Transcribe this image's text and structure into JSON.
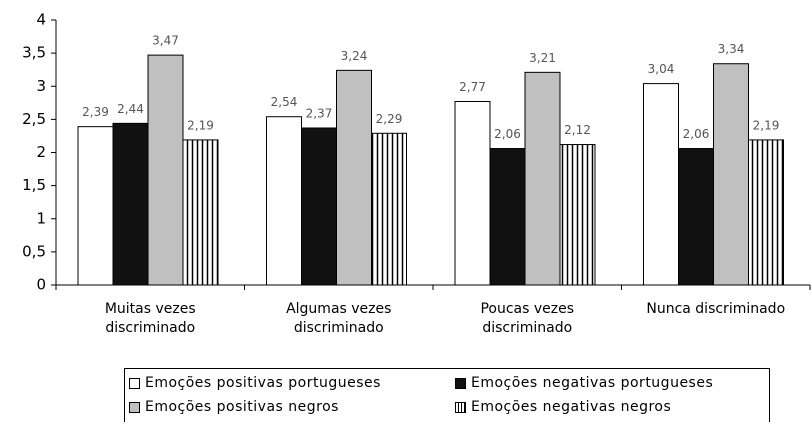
{
  "chart_data": {
    "type": "bar",
    "categories": [
      "Muitas vezes discriminado",
      "Algumas vezes discriminado",
      "Poucas vezes discriminado",
      "Nunca discriminado"
    ],
    "series": [
      {
        "name": "Emoções positivas portugueses",
        "color": "#ffffff",
        "values": [
          2.39,
          2.54,
          2.77,
          3.04
        ],
        "value_labels": [
          "2,39",
          "2,54",
          "2,77",
          "3,04"
        ]
      },
      {
        "name": "Emoções negativas portugueses",
        "color": "#111111",
        "values": [
          2.44,
          2.37,
          2.06,
          2.06
        ],
        "value_labels": [
          "2,44",
          "2,37",
          "2,06",
          "2,06"
        ]
      },
      {
        "name": "Emoções positivas negros",
        "color": "#c0c0c0",
        "values": [
          3.47,
          3.24,
          3.21,
          3.34
        ],
        "value_labels": [
          "3,47",
          "3,24",
          "3,21",
          "3,34"
        ]
      },
      {
        "name": "Emoções negativas negros",
        "color": "#ffffff",
        "pattern": "vertical-lines",
        "values": [
          2.19,
          2.29,
          2.12,
          2.19
        ],
        "value_labels": [
          "2,19",
          "2,29",
          "2,12",
          "2,19"
        ]
      }
    ],
    "ylim": [
      0,
      4
    ],
    "yticks": [
      0,
      {
        "value": 0.5,
        "label": "0,5"
      },
      1,
      {
        "value": 1.5,
        "label": "1,5"
      },
      2,
      {
        "value": 2.5,
        "label": "2,5"
      },
      3,
      {
        "value": 3.5,
        "label": "3,5"
      },
      4
    ],
    "grid": false,
    "legend": "bottom"
  }
}
